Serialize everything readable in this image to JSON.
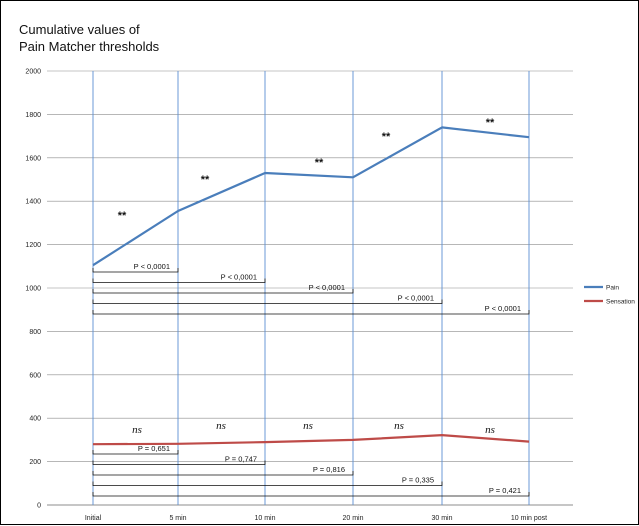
{
  "chart_data": {
    "type": "line",
    "title_lines": [
      "Cumulative values of",
      "Pain Matcher thresholds"
    ],
    "xlabel": "",
    "ylabel": "",
    "categories": [
      "Initial",
      "5 min",
      "10 min",
      "20 min",
      "30 min",
      "10 min post"
    ],
    "ylim": [
      0,
      2000
    ],
    "yticks": [
      0,
      200,
      400,
      600,
      800,
      1000,
      1200,
      1400,
      1600,
      1800,
      2000
    ],
    "grid": "vertical lines at each category, horizontal lines at each y tick",
    "legend_placement": "right",
    "series": [
      {
        "name": "Pain",
        "color": "#4a7ebb",
        "values": [
          1105,
          1355,
          1530,
          1510,
          1740,
          1695
        ]
      },
      {
        "name": "Sensation",
        "color": "#be4b48",
        "values": [
          280,
          282,
          290,
          300,
          322,
          292
        ]
      }
    ],
    "upper_annotations": [
      "**",
      "**",
      "**",
      "**",
      "**"
    ],
    "lower_annotations": [
      "ns",
      "ns",
      "ns",
      "ns",
      "ns"
    ],
    "pain_comparisons": [
      {
        "to": "5 min",
        "label": "P < 0,0001"
      },
      {
        "to": "10 min",
        "label": "P < 0,0001"
      },
      {
        "to": "20 min",
        "label": "P < 0,0001"
      },
      {
        "to": "30 min",
        "label": "P < 0,0001"
      },
      {
        "to": "10 min post",
        "label": "P < 0,0001"
      }
    ],
    "sensation_comparisons": [
      {
        "to": "5 min",
        "label": "P = 0,651"
      },
      {
        "to": "10 min",
        "label": "P = 0,747"
      },
      {
        "to": "20 min",
        "label": "P = 0,816"
      },
      {
        "to": "30 min",
        "label": "P = 0,335"
      },
      {
        "to": "10 min post",
        "label": "P = 0,421"
      }
    ]
  }
}
